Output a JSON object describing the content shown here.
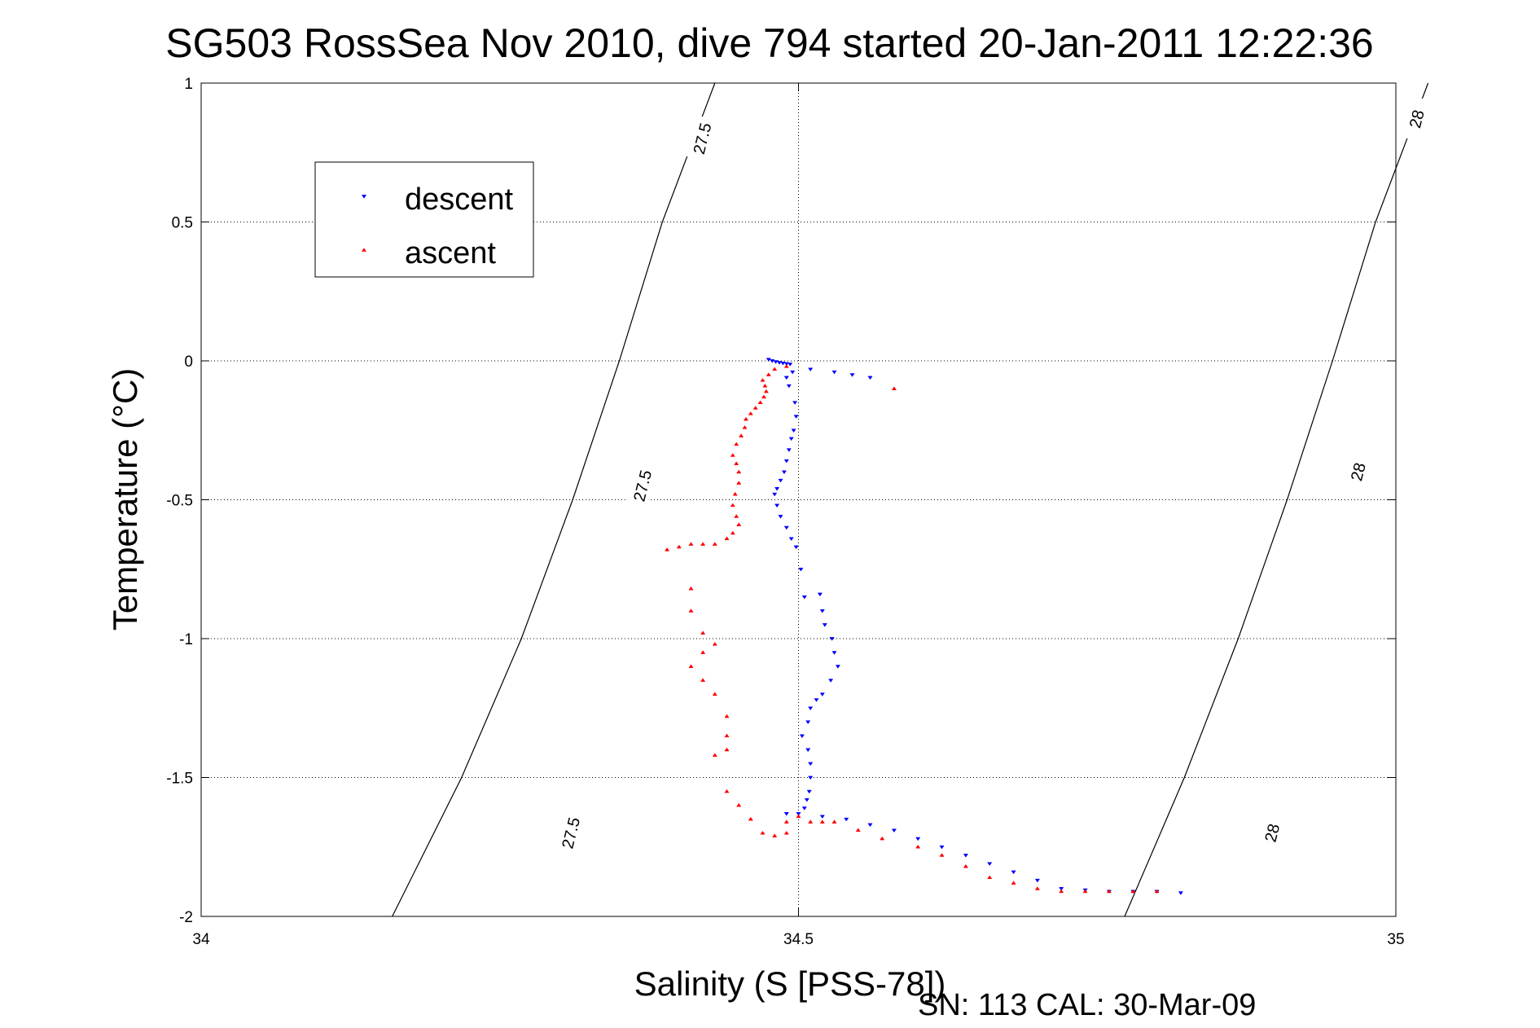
{
  "chart_data": {
    "type": "scatter",
    "title": "SG503 RossSea Nov 2010, dive 794 started 20-Jan-2011 12:22:36",
    "xlabel": "Salinity (S [PSS-78])",
    "ylabel": "Temperature (°C)",
    "xlim": [
      34,
      35
    ],
    "ylim": [
      -2,
      1
    ],
    "xticks": [
      "34",
      "34.5",
      "35"
    ],
    "yticks": [
      "1",
      "0.5",
      "0",
      "-0.5",
      "-1",
      "-1.5",
      "-2"
    ],
    "xtick_values": [
      34,
      34.5,
      35
    ],
    "ytick_values": [
      1,
      0.5,
      0,
      -0.5,
      -1,
      -1.5,
      -2
    ],
    "grid": true,
    "legend_position": "top-left",
    "footer": "SN: 113  CAL: 30-Mar-09",
    "density_contours": [
      {
        "label": "27.5",
        "points": [
          [
            34.16,
            -2
          ],
          [
            34.218,
            -1.5
          ],
          [
            34.268,
            -1
          ],
          [
            34.311,
            -0.5
          ],
          [
            34.35,
            0
          ],
          [
            34.386,
            0.5
          ],
          [
            34.43,
            1
          ]
        ]
      },
      {
        "label": "28",
        "points": [
          [
            34.773,
            -2
          ],
          [
            34.823,
            -1.5
          ],
          [
            34.868,
            -1
          ],
          [
            34.909,
            -0.5
          ],
          [
            34.947,
            0
          ],
          [
            34.983,
            0.5
          ],
          [
            35.027,
            1
          ]
        ]
      }
    ],
    "contour_labels": [
      {
        "text": "27.5",
        "at": [
          34.31,
          -1.7
        ]
      },
      {
        "text": "27.5",
        "at": [
          34.37,
          -0.45
        ]
      },
      {
        "text": "27.5",
        "at": [
          34.42,
          0.8
        ]
      },
      {
        "text": "28",
        "at": [
          34.897,
          -1.7
        ]
      },
      {
        "text": "28",
        "at": [
          34.969,
          -0.4
        ]
      },
      {
        "text": "28",
        "at": [
          35.018,
          0.87
        ]
      }
    ],
    "series": [
      {
        "name": "descent",
        "color": "#0000ff",
        "marker": "triangle-down",
        "points": [
          [
            34.475,
            0.005
          ],
          [
            34.478,
            0.0
          ],
          [
            34.481,
            -0.003
          ],
          [
            34.484,
            -0.006
          ],
          [
            34.487,
            -0.008
          ],
          [
            34.49,
            -0.01
          ],
          [
            34.493,
            -0.012
          ],
          [
            34.51,
            -0.03
          ],
          [
            34.53,
            -0.04
          ],
          [
            34.545,
            -0.05
          ],
          [
            34.56,
            -0.06
          ],
          [
            34.495,
            -0.04
          ],
          [
            34.49,
            -0.06
          ],
          [
            34.492,
            -0.09
          ],
          [
            34.497,
            -0.15
          ],
          [
            34.498,
            -0.2
          ],
          [
            34.496,
            -0.25
          ],
          [
            34.494,
            -0.28
          ],
          [
            34.492,
            -0.32
          ],
          [
            34.49,
            -0.36
          ],
          [
            34.488,
            -0.4
          ],
          [
            34.485,
            -0.43
          ],
          [
            34.482,
            -0.46
          ],
          [
            34.48,
            -0.48
          ],
          [
            34.482,
            -0.52
          ],
          [
            34.485,
            -0.56
          ],
          [
            34.49,
            -0.6
          ],
          [
            34.494,
            -0.64
          ],
          [
            34.498,
            -0.67
          ],
          [
            34.502,
            -0.75
          ],
          [
            34.505,
            -0.85
          ],
          [
            34.518,
            -0.84
          ],
          [
            34.52,
            -0.9
          ],
          [
            34.522,
            -0.95
          ],
          [
            34.528,
            -1.0
          ],
          [
            34.53,
            -1.05
          ],
          [
            34.533,
            -1.1
          ],
          [
            34.527,
            -1.15
          ],
          [
            34.52,
            -1.2
          ],
          [
            34.515,
            -1.22
          ],
          [
            34.51,
            -1.25
          ],
          [
            34.508,
            -1.3
          ],
          [
            34.503,
            -1.35
          ],
          [
            34.508,
            -1.4
          ],
          [
            34.51,
            -1.45
          ],
          [
            34.51,
            -1.5
          ],
          [
            34.509,
            -1.55
          ],
          [
            34.507,
            -1.58
          ],
          [
            34.505,
            -1.61
          ],
          [
            34.49,
            -1.63
          ],
          [
            34.5,
            -1.63
          ],
          [
            34.52,
            -1.64
          ],
          [
            34.54,
            -1.65
          ],
          [
            34.56,
            -1.67
          ],
          [
            34.58,
            -1.69
          ],
          [
            34.6,
            -1.72
          ],
          [
            34.62,
            -1.75
          ],
          [
            34.64,
            -1.78
          ],
          [
            34.66,
            -1.81
          ],
          [
            34.68,
            -1.84
          ],
          [
            34.7,
            -1.87
          ],
          [
            34.72,
            -1.9
          ],
          [
            34.74,
            -1.905
          ],
          [
            34.76,
            -1.91
          ],
          [
            34.78,
            -1.91
          ],
          [
            34.8,
            -1.91
          ],
          [
            34.82,
            -1.915
          ]
        ]
      },
      {
        "name": "ascent",
        "color": "#ff0000",
        "marker": "triangle-up",
        "points": [
          [
            34.58,
            -0.1
          ],
          [
            34.49,
            -0.02
          ],
          [
            34.48,
            -0.03
          ],
          [
            34.475,
            -0.05
          ],
          [
            34.47,
            -0.07
          ],
          [
            34.472,
            -0.09
          ],
          [
            34.473,
            -0.11
          ],
          [
            34.471,
            -0.13
          ],
          [
            34.468,
            -0.15
          ],
          [
            34.464,
            -0.17
          ],
          [
            34.46,
            -0.19
          ],
          [
            34.456,
            -0.21
          ],
          [
            34.455,
            -0.24
          ],
          [
            34.452,
            -0.27
          ],
          [
            34.448,
            -0.3
          ],
          [
            34.445,
            -0.34
          ],
          [
            34.448,
            -0.37
          ],
          [
            34.45,
            -0.4
          ],
          [
            34.45,
            -0.44
          ],
          [
            34.447,
            -0.48
          ],
          [
            34.445,
            -0.52
          ],
          [
            34.448,
            -0.56
          ],
          [
            34.45,
            -0.59
          ],
          [
            34.445,
            -0.62
          ],
          [
            34.44,
            -0.64
          ],
          [
            34.43,
            -0.66
          ],
          [
            34.42,
            -0.66
          ],
          [
            34.41,
            -0.66
          ],
          [
            34.4,
            -0.67
          ],
          [
            34.39,
            -0.68
          ],
          [
            34.41,
            -0.82
          ],
          [
            34.41,
            -0.9
          ],
          [
            34.42,
            -0.98
          ],
          [
            34.43,
            -1.02
          ],
          [
            34.42,
            -1.05
          ],
          [
            34.41,
            -1.1
          ],
          [
            34.42,
            -1.15
          ],
          [
            34.43,
            -1.2
          ],
          [
            34.44,
            -1.28
          ],
          [
            34.44,
            -1.35
          ],
          [
            34.44,
            -1.4
          ],
          [
            34.43,
            -1.42
          ],
          [
            34.44,
            -1.55
          ],
          [
            34.45,
            -1.6
          ],
          [
            34.46,
            -1.65
          ],
          [
            34.47,
            -1.7
          ],
          [
            34.48,
            -1.71
          ],
          [
            34.49,
            -1.7
          ],
          [
            34.49,
            -1.66
          ],
          [
            34.5,
            -1.64
          ],
          [
            34.51,
            -1.66
          ],
          [
            34.52,
            -1.66
          ],
          [
            34.53,
            -1.66
          ],
          [
            34.55,
            -1.69
          ],
          [
            34.57,
            -1.72
          ],
          [
            34.6,
            -1.75
          ],
          [
            34.62,
            -1.78
          ],
          [
            34.64,
            -1.82
          ],
          [
            34.66,
            -1.86
          ],
          [
            34.68,
            -1.88
          ],
          [
            34.7,
            -1.9
          ],
          [
            34.72,
            -1.91
          ],
          [
            34.74,
            -1.91
          ],
          [
            34.76,
            -1.91
          ],
          [
            34.78,
            -1.91
          ],
          [
            34.8,
            -1.91
          ]
        ]
      }
    ]
  }
}
